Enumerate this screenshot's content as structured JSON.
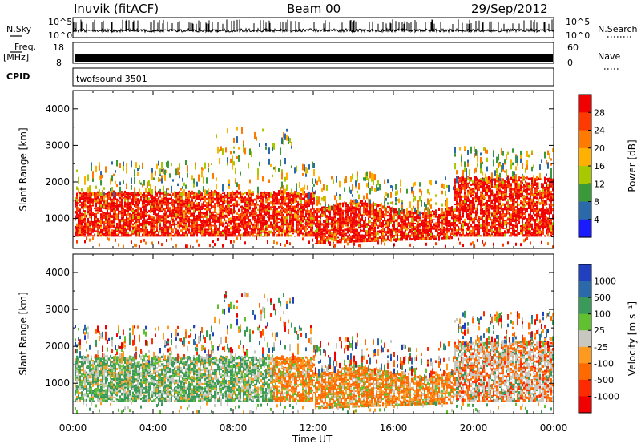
{
  "header": {
    "station": "Inuvik (fitACF)",
    "beam": "Beam 00",
    "date": "29/Sep/2012"
  },
  "summary_panels": {
    "nsky": {
      "label": "N.Sky",
      "ticks": [
        "10^5",
        "10^0"
      ]
    },
    "nsearch": {
      "label": "N.Search",
      "ticks": [
        "10^5",
        "10^0"
      ]
    },
    "freq": {
      "label_line1": "Freq.",
      "label_line2": "[MHz]",
      "ticks": [
        "18",
        "8"
      ]
    },
    "nave": {
      "label": "Nave",
      "ticks": [
        "60",
        "0"
      ]
    },
    "cpid": {
      "label": "CPID",
      "value": "twofsound 3501"
    }
  },
  "chart_data": [
    {
      "type": "heatmap",
      "title": "",
      "xlabel": "",
      "ylabel": "Slant Range [km]",
      "xlim_hours": [
        0,
        24
      ],
      "ylim_km": [
        180,
        4500
      ],
      "x_ticks": [
        "00:00",
        "04:00",
        "08:00",
        "12:00",
        "16:00",
        "20:00",
        "00:00"
      ],
      "y_ticks": [
        1000,
        2000,
        3000,
        4000
      ],
      "colorbar": {
        "label": "Power [dB]",
        "ticks": [
          "28",
          "24",
          "20",
          "16",
          "12",
          "8",
          "4"
        ],
        "colors": [
          "#f00000",
          "#ff3a00",
          "#ff7a00",
          "#ffb000",
          "#a8c800",
          "#3a9a3a",
          "#2a6aaa",
          "#1a1aff"
        ]
      },
      "description_values": {
        "main_band_km": [
          500,
          1800
        ],
        "dominant_power_db": 28
      }
    },
    {
      "type": "heatmap",
      "title": "",
      "xlabel": "Time UT",
      "ylabel": "Slant Range [km]",
      "xlim_hours": [
        0,
        24
      ],
      "ylim_km": [
        180,
        4500
      ],
      "x_ticks": [
        "00:00",
        "04:00",
        "08:00",
        "12:00",
        "16:00",
        "20:00",
        "00:00"
      ],
      "y_ticks": [
        1000,
        2000,
        3000,
        4000
      ],
      "colorbar": {
        "label": "Velocity [m s⁻¹]",
        "ticks": [
          "1000",
          "500",
          "100",
          "25",
          "-25",
          "-100",
          "-500",
          "-1000"
        ],
        "colors": [
          "#2040c0",
          "#2a6aaa",
          "#3a9a5a",
          "#60c030",
          "#c8c8c0",
          "#ff9a20",
          "#ff6a00",
          "#ff2a00",
          "#f00000"
        ]
      }
    }
  ]
}
